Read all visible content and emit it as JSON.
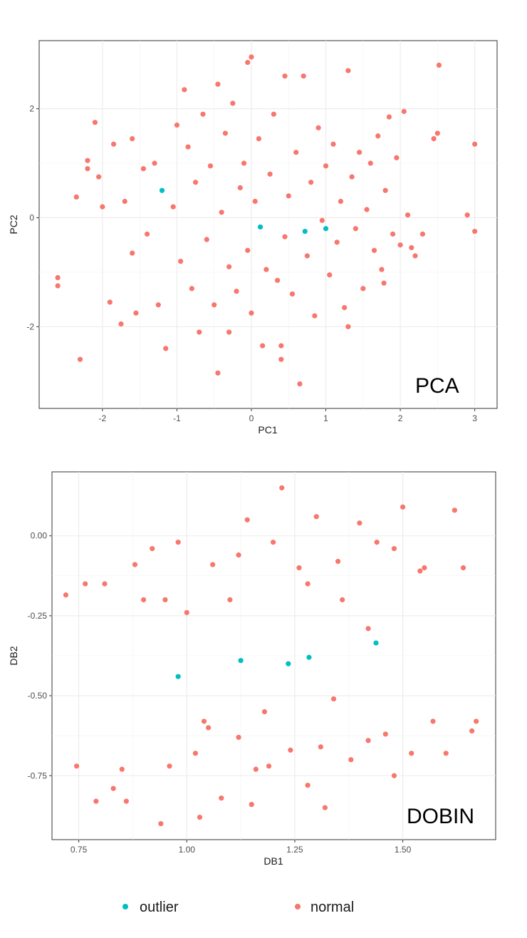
{
  "colors": {
    "outlier": "#00BFC4",
    "normal": "#F8766D",
    "panel_bg": "#ffffff",
    "grid": "#ebebeb",
    "border": "#333333"
  },
  "legend": {
    "placement": "bottom",
    "items": [
      {
        "label": "outlier",
        "color": "#00BFC4"
      },
      {
        "label": "normal",
        "color": "#F8766D"
      }
    ]
  },
  "chart_data": [
    {
      "type": "scatter",
      "title": "PCA",
      "xlabel": "PC1",
      "ylabel": "PC2",
      "xlim": [
        -2.85,
        3.3
      ],
      "ylim": [
        -3.5,
        3.25
      ],
      "xticks": [
        -2,
        -1,
        0,
        1,
        2,
        3
      ],
      "xtick_labels": [
        "-2",
        "-1",
        "0",
        "1",
        "2",
        "3"
      ],
      "yticks": [
        -2,
        0,
        2
      ],
      "ytick_labels": [
        "-2",
        "0",
        "2"
      ],
      "grid": true,
      "series": [
        {
          "name": "outlier",
          "color": "#00BFC4",
          "points": [
            [
              0.12,
              -0.17
            ],
            [
              0.72,
              -0.25
            ],
            [
              1.0,
              -0.2
            ],
            [
              -1.2,
              0.5
            ]
          ]
        },
        {
          "name": "normal",
          "color": "#F8766D",
          "points": [
            [
              -2.6,
              -1.1
            ],
            [
              -2.6,
              -1.25
            ],
            [
              -2.3,
              -2.6
            ],
            [
              -2.35,
              0.38
            ],
            [
              -2.1,
              1.75
            ],
            [
              -2.2,
              1.05
            ],
            [
              -2.05,
              0.75
            ],
            [
              -1.85,
              1.35
            ],
            [
              -1.9,
              -1.55
            ],
            [
              -1.75,
              -1.95
            ],
            [
              -1.6,
              1.45
            ],
            [
              -1.55,
              -1.75
            ],
            [
              -1.45,
              0.9
            ],
            [
              -1.4,
              -0.3
            ],
            [
              -1.3,
              1.0
            ],
            [
              -1.25,
              -1.6
            ],
            [
              -1.15,
              -2.4
            ],
            [
              -1.05,
              0.2
            ],
            [
              -1.0,
              1.7
            ],
            [
              -0.95,
              -0.8
            ],
            [
              -0.9,
              2.35
            ],
            [
              -0.85,
              1.3
            ],
            [
              -0.8,
              -1.3
            ],
            [
              -0.75,
              0.65
            ],
            [
              -0.7,
              -2.1
            ],
            [
              -0.65,
              1.9
            ],
            [
              -0.6,
              -0.4
            ],
            [
              -0.55,
              0.95
            ],
            [
              -0.5,
              -1.6
            ],
            [
              -0.45,
              2.45
            ],
            [
              -0.45,
              -2.85
            ],
            [
              -0.4,
              0.1
            ],
            [
              -0.35,
              1.55
            ],
            [
              -0.3,
              -0.9
            ],
            [
              -0.25,
              2.1
            ],
            [
              -0.2,
              -1.35
            ],
            [
              -0.15,
              0.55
            ],
            [
              -0.1,
              1.0
            ],
            [
              -0.05,
              2.85
            ],
            [
              -0.05,
              -0.6
            ],
            [
              0.0,
              2.95
            ],
            [
              0.0,
              -1.75
            ],
            [
              0.05,
              0.3
            ],
            [
              0.1,
              1.45
            ],
            [
              0.15,
              -2.35
            ],
            [
              0.2,
              -0.95
            ],
            [
              0.25,
              0.8
            ],
            [
              0.3,
              1.9
            ],
            [
              0.35,
              -1.15
            ],
            [
              0.4,
              -2.6
            ],
            [
              0.45,
              2.6
            ],
            [
              0.45,
              -0.35
            ],
            [
              0.5,
              0.4
            ],
            [
              0.55,
              -1.4
            ],
            [
              0.6,
              1.2
            ],
            [
              0.65,
              -3.05
            ],
            [
              0.7,
              2.6
            ],
            [
              0.75,
              -0.7
            ],
            [
              0.8,
              0.65
            ],
            [
              0.85,
              -1.8
            ],
            [
              0.9,
              1.65
            ],
            [
              0.95,
              -0.05
            ],
            [
              1.0,
              0.95
            ],
            [
              1.05,
              -1.05
            ],
            [
              1.1,
              1.35
            ],
            [
              1.15,
              -0.45
            ],
            [
              1.2,
              0.3
            ],
            [
              1.25,
              -1.65
            ],
            [
              1.3,
              2.7
            ],
            [
              1.35,
              0.75
            ],
            [
              1.4,
              -0.2
            ],
            [
              1.45,
              1.2
            ],
            [
              1.5,
              -1.3
            ],
            [
              1.55,
              0.15
            ],
            [
              1.6,
              1.0
            ],
            [
              1.65,
              -0.6
            ],
            [
              1.7,
              1.5
            ],
            [
              1.75,
              -0.95
            ],
            [
              1.8,
              0.5
            ],
            [
              1.85,
              1.85
            ],
            [
              1.9,
              -0.3
            ],
            [
              1.95,
              1.1
            ],
            [
              2.0,
              -0.5
            ],
            [
              2.05,
              1.95
            ],
            [
              2.1,
              0.05
            ],
            [
              2.2,
              -0.7
            ],
            [
              2.3,
              -0.3
            ],
            [
              2.45,
              1.45
            ],
            [
              2.5,
              1.55
            ],
            [
              2.52,
              2.8
            ],
            [
              2.9,
              0.05
            ],
            [
              3.0,
              1.35
            ],
            [
              3.0,
              -0.25
            ],
            [
              2.15,
              -0.55
            ],
            [
              1.78,
              -1.2
            ],
            [
              1.3,
              -2.0
            ],
            [
              -1.6,
              -0.65
            ],
            [
              -1.7,
              0.3
            ],
            [
              -0.3,
              -2.1
            ],
            [
              0.4,
              -2.35
            ],
            [
              -2.0,
              0.2
            ],
            [
              -2.2,
              0.9
            ]
          ]
        }
      ]
    },
    {
      "type": "scatter",
      "title": "DOBIN",
      "xlabel": "DB1",
      "ylabel": "DB2",
      "xlim": [
        0.688,
        1.715
      ],
      "ylim": [
        -0.95,
        0.2
      ],
      "xticks": [
        0.75,
        1.0,
        1.25,
        1.5
      ],
      "xtick_labels": [
        "0.75",
        "1.00",
        "1.25",
        "1.50"
      ],
      "yticks": [
        -0.75,
        -0.5,
        -0.25,
        0.0
      ],
      "ytick_labels": [
        "-0.75",
        "-0.50",
        "-0.25",
        "0.00"
      ],
      "grid": true,
      "series": [
        {
          "name": "outlier",
          "color": "#00BFC4",
          "points": [
            [
              0.98,
              -0.44
            ],
            [
              1.125,
              -0.39
            ],
            [
              1.235,
              -0.4
            ],
            [
              1.283,
              -0.38
            ],
            [
              1.438,
              -0.335
            ]
          ]
        },
        {
          "name": "normal",
          "color": "#F8766D",
          "points": [
            [
              0.72,
              -0.185
            ],
            [
              0.745,
              -0.72
            ],
            [
              0.765,
              -0.15
            ],
            [
              0.79,
              -0.83
            ],
            [
              0.81,
              -0.15
            ],
            [
              0.83,
              -0.79
            ],
            [
              0.85,
              -0.73
            ],
            [
              0.86,
              -0.83
            ],
            [
              0.88,
              -0.09
            ],
            [
              0.9,
              -0.2
            ],
            [
              0.92,
              -0.04
            ],
            [
              0.94,
              -0.9
            ],
            [
              0.96,
              -0.72
            ],
            [
              0.98,
              -0.02
            ],
            [
              1.0,
              -0.24
            ],
            [
              1.02,
              -0.68
            ],
            [
              1.04,
              -0.58
            ],
            [
              1.06,
              -0.09
            ],
            [
              1.08,
              -0.82
            ],
            [
              1.1,
              -0.2
            ],
            [
              1.12,
              -0.63
            ],
            [
              1.14,
              0.05
            ],
            [
              1.16,
              -0.73
            ],
            [
              1.18,
              -0.55
            ],
            [
              1.2,
              -0.02
            ],
            [
              1.22,
              0.15
            ],
            [
              1.24,
              -0.67
            ],
            [
              1.26,
              -0.1
            ],
            [
              1.28,
              -0.78
            ],
            [
              1.3,
              0.06
            ],
            [
              1.32,
              -0.85
            ],
            [
              1.34,
              -0.51
            ],
            [
              1.36,
              -0.2
            ],
            [
              1.38,
              -0.7
            ],
            [
              1.4,
              0.04
            ],
            [
              1.42,
              -0.29
            ],
            [
              1.44,
              -0.02
            ],
            [
              1.46,
              -0.62
            ],
            [
              1.48,
              -0.75
            ],
            [
              1.5,
              0.09
            ],
            [
              1.52,
              -0.68
            ],
            [
              1.54,
              -0.11
            ],
            [
              1.55,
              -0.1
            ],
            [
              1.57,
              -0.58
            ],
            [
              1.6,
              -0.68
            ],
            [
              1.62,
              0.08
            ],
            [
              1.64,
              -0.1
            ],
            [
              1.66,
              -0.61
            ],
            [
              1.67,
              -0.58
            ],
            [
              1.03,
              -0.88
            ],
            [
              1.15,
              -0.84
            ],
            [
              1.28,
              -0.15
            ],
            [
              1.35,
              -0.08
            ],
            [
              0.95,
              -0.2
            ],
            [
              1.05,
              -0.6
            ],
            [
              1.19,
              -0.72
            ],
            [
              1.31,
              -0.66
            ],
            [
              1.42,
              -0.64
            ],
            [
              1.48,
              -0.04
            ],
            [
              1.12,
              -0.06
            ]
          ]
        }
      ]
    }
  ]
}
